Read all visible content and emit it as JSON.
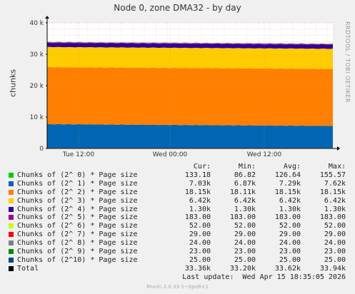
{
  "title": "Node 0, zone DMA32 - by day",
  "side_label": "RRDTOOL / TOBI OETIKER",
  "footer": "Munin 2.0.33-1~bpo8+1",
  "last_update": "Last update:  Wed Apr 15 18:35:05 2026",
  "legend_headers": {
    "cur": "Cur:",
    "min": "Min:",
    "avg": "Avg:",
    "max": "Max:"
  },
  "chart_data": {
    "type": "area",
    "title": "Node 0, zone DMA32 - by day",
    "ylabel": "chunks",
    "ylim": [
      0,
      40000
    ],
    "y_ticks": [
      {
        "value": 0,
        "label": "0"
      },
      {
        "value": 10000,
        "label": "10 k"
      },
      {
        "value": 20000,
        "label": "20 k"
      },
      {
        "value": 30000,
        "label": "30 k"
      },
      {
        "value": 40000,
        "label": "40 k"
      }
    ],
    "x_ticks": [
      {
        "frac": 0.11,
        "label": "Tue 12:00"
      },
      {
        "frac": 0.43,
        "label": "Wed 00:00"
      },
      {
        "frac": 0.76,
        "label": "Wed 12:00"
      }
    ],
    "grid": true,
    "stacked": true,
    "series": [
      {
        "name": "Chunks of (2^ 0) * Page size",
        "color": "#00cc00",
        "cur": "133.18",
        "min": "86.82",
        "avg": "126.64",
        "max": "155.57",
        "level_start": 133,
        "level_end": 133
      },
      {
        "name": "Chunks of (2^ 1) * Page size",
        "color": "#0066b3",
        "cur": "7.03k",
        "min": "6.87k",
        "avg": "7.29k",
        "max": "7.62k",
        "level_start": 7600,
        "level_end": 7030
      },
      {
        "name": "Chunks of (2^ 2) * Page size",
        "color": "#ff8000",
        "cur": "18.15k",
        "min": "18.11k",
        "avg": "18.15k",
        "max": "18.15k",
        "level_start": 18150,
        "level_end": 18150
      },
      {
        "name": "Chunks of (2^ 3) * Page size",
        "color": "#ffcc00",
        "cur": "6.42k",
        "min": "6.42k",
        "avg": "6.42k",
        "max": "6.42k",
        "level_start": 6420,
        "level_end": 6420
      },
      {
        "name": "Chunks of (2^ 4) * Page size",
        "color": "#330099",
        "cur": "1.30k",
        "min": "1.30k",
        "avg": "1.30k",
        "max": "1.30k",
        "level_start": 1300,
        "level_end": 1300
      },
      {
        "name": "Chunks of (2^ 5) * Page size",
        "color": "#990099",
        "cur": "183.00",
        "min": "183.00",
        "avg": "183.00",
        "max": "183.00",
        "level_start": 183,
        "level_end": 183
      },
      {
        "name": "Chunks of (2^ 6) * Page size",
        "color": "#ccff00",
        "cur": "52.00",
        "min": "52.00",
        "avg": "52.00",
        "max": "52.00",
        "level_start": 52,
        "level_end": 52
      },
      {
        "name": "Chunks of (2^ 7) * Page size",
        "color": "#ff0000",
        "cur": "29.00",
        "min": "29.00",
        "avg": "29.00",
        "max": "29.00",
        "level_start": 29,
        "level_end": 29
      },
      {
        "name": "Chunks of (2^ 8) * Page size",
        "color": "#808080",
        "cur": "24.00",
        "min": "24.00",
        "avg": "24.00",
        "max": "24.00",
        "level_start": 24,
        "level_end": 24
      },
      {
        "name": "Chunks of (2^ 9) * Page size",
        "color": "#008f00",
        "cur": "23.00",
        "min": "23.00",
        "avg": "23.00",
        "max": "23.00",
        "level_start": 23,
        "level_end": 23
      },
      {
        "name": "Chunks of (2^10) * Page size",
        "color": "#00487d",
        "cur": "25.00",
        "min": "25.00",
        "avg": "25.00",
        "max": "25.00",
        "level_start": 25,
        "level_end": 25
      }
    ],
    "total": {
      "name": "Total",
      "color": "#000000",
      "cur": "33.36k",
      "min": "33.20k",
      "avg": "33.62k",
      "max": "33.94k"
    }
  }
}
